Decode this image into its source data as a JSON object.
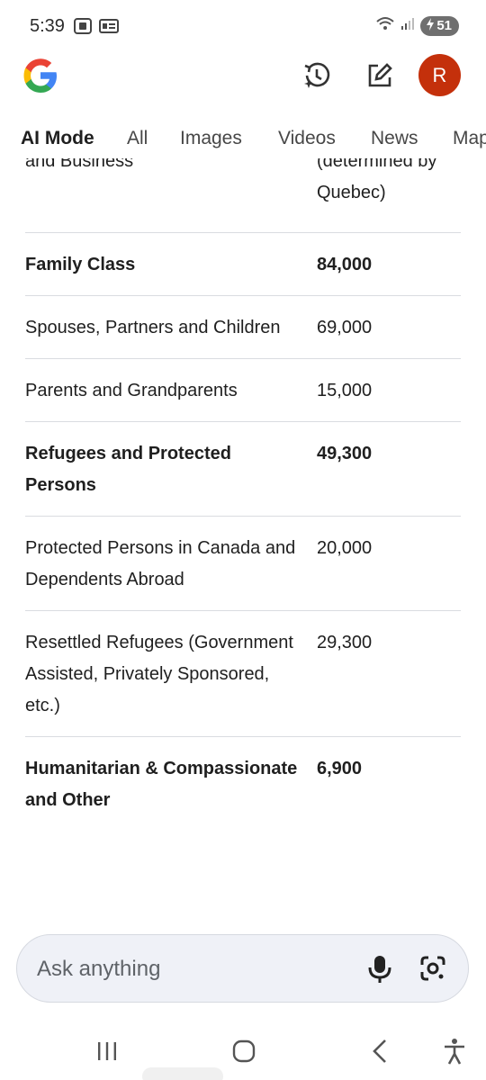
{
  "status": {
    "time": "5:39",
    "battery": "51"
  },
  "tabs": [
    {
      "label": "AI Mode"
    },
    {
      "label": "All"
    },
    {
      "label": "Images"
    },
    {
      "label": "Videos"
    },
    {
      "label": "News"
    },
    {
      "label": "Maps"
    }
  ],
  "avatar": {
    "initial": "R"
  },
  "table": {
    "partial_row": {
      "category": "and Business",
      "value_line1": "(determined by",
      "value_line2": "Quebec)"
    },
    "rows": [
      {
        "category": "Family Class",
        "value": "84,000",
        "bold": true
      },
      {
        "category": "Spouses, Partners and Children",
        "value": "69,000",
        "bold": false
      },
      {
        "category": "Parents and Grandparents",
        "value": "15,000",
        "bold": false
      },
      {
        "category": "Refugees and Protected Persons",
        "value": "49,300",
        "bold": true
      },
      {
        "category": "Protected Persons in Canada and Dependents Abroad",
        "value": "20,000",
        "bold": false
      },
      {
        "category": "Resettled Refugees (Government Assisted, Privately Sponsored, etc.)",
        "value": "29,300",
        "bold": false
      },
      {
        "category": "Humanitarian & Compassionate and Other",
        "value": "6,900",
        "bold": true
      }
    ]
  },
  "search": {
    "placeholder": "Ask anything"
  },
  "icons": {
    "history": "history-sparkle-icon",
    "edit": "edit-icon",
    "mic": "mic-icon",
    "lens": "google-lens-icon",
    "recents": "recents-icon",
    "home": "home-icon",
    "back": "back-icon",
    "accessibility": "accessibility-icon"
  },
  "colors": {
    "avatar": "#c4300b",
    "search_bg": "#eff1f7"
  }
}
